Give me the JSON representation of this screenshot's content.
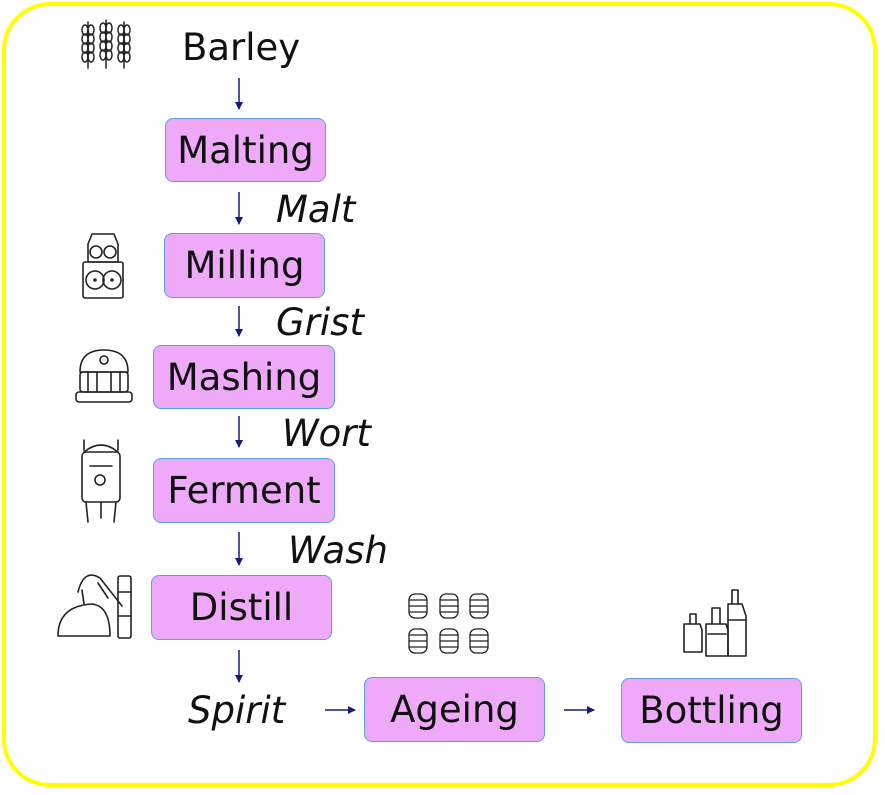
{
  "colors": {
    "frame": "#ffff00",
    "box_fill": "#eeaaf8",
    "box_border": "#5aa0e6",
    "arrow": "#1a1a7a"
  },
  "input": "Barley",
  "steps": {
    "malting": "Malting",
    "milling": "Milling",
    "mashing": "Mashing",
    "ferment": "Ferment",
    "distill": "Distill",
    "ageing": "Ageing",
    "bottling": "Bottling"
  },
  "products": {
    "malt": "Malt",
    "grist": "Grist",
    "wort": "Wort",
    "wash": "Wash",
    "spirit": "Spirit"
  },
  "icons": [
    "barley-icon",
    "mill-icon",
    "mash-tun-icon",
    "fermenter-icon",
    "pot-still-icon",
    "barrels-icon",
    "bottles-icon"
  ]
}
